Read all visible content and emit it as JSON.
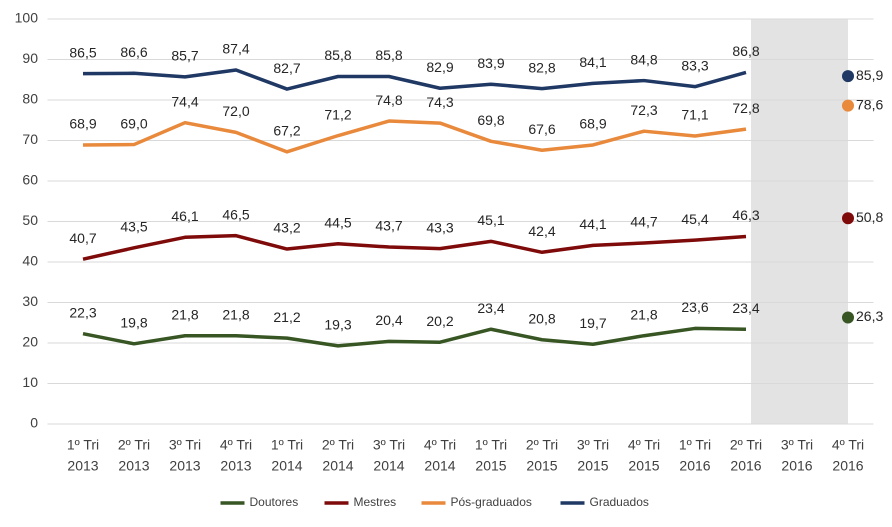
{
  "chart_data": {
    "type": "line",
    "categories": [
      [
        "1º Tri",
        "2013"
      ],
      [
        "2º Tri",
        "2013"
      ],
      [
        "3º Tri",
        "2013"
      ],
      [
        "4º Tri",
        "2013"
      ],
      [
        "1º Tri",
        "2014"
      ],
      [
        "2º Tri",
        "2014"
      ],
      [
        "3º Tri",
        "2014"
      ],
      [
        "4º Tri",
        "2014"
      ],
      [
        "1º Tri",
        "2015"
      ],
      [
        "2º Tri",
        "2015"
      ],
      [
        "3º Tri",
        "2015"
      ],
      [
        "4º Tri",
        "2015"
      ],
      [
        "1º Tri",
        "2016"
      ],
      [
        "2º Tri",
        "2016"
      ],
      [
        "3º Tri",
        "2016"
      ],
      [
        "4º Tri",
        "2016"
      ]
    ],
    "series": [
      {
        "name": "Doutores",
        "color": "#375623",
        "values": [
          22.3,
          19.8,
          21.8,
          21.8,
          21.2,
          19.3,
          20.4,
          20.2,
          23.4,
          20.8,
          19.7,
          21.8,
          23.6,
          23.4,
          null,
          26.3
        ],
        "value_labels": [
          "22,3",
          "19,8",
          "21,8",
          "21,8",
          "21,2",
          "19,3",
          "20,4",
          "20,2",
          "23,4",
          "20,8",
          "19,7",
          "21,8",
          "23,6",
          "23,4",
          null,
          "26,3"
        ]
      },
      {
        "name": "Mestres",
        "color": "#7f0a0a",
        "values": [
          40.7,
          43.5,
          46.1,
          46.5,
          43.2,
          44.5,
          43.7,
          43.3,
          45.1,
          42.4,
          44.1,
          44.7,
          45.4,
          46.3,
          null,
          50.8
        ],
        "value_labels": [
          "40,7",
          "43,5",
          "46,1",
          "46,5",
          "43,2",
          "44,5",
          "43,7",
          "43,3",
          "45,1",
          "42,4",
          "44,1",
          "44,7",
          "45,4",
          "46,3",
          null,
          "50,8"
        ]
      },
      {
        "name": "Pós-graduados",
        "color": "#e8893c",
        "values": [
          68.9,
          69.0,
          74.4,
          72.0,
          67.2,
          71.2,
          74.8,
          74.3,
          69.8,
          67.6,
          68.9,
          72.3,
          71.1,
          72.8,
          null,
          78.6
        ],
        "value_labels": [
          "68,9",
          "69,0",
          "74,4",
          "72,0",
          "67,2",
          "71,2",
          "74,8",
          "74,3",
          "69,8",
          "67,6",
          "68,9",
          "72,3",
          "71,1",
          "72,8",
          null,
          "78,6"
        ]
      },
      {
        "name": "Graduados",
        "color": "#1f3864",
        "values": [
          86.5,
          86.6,
          85.7,
          87.4,
          82.7,
          85.8,
          85.8,
          82.9,
          83.9,
          82.8,
          84.1,
          84.8,
          83.3,
          86.8,
          null,
          85.9
        ],
        "value_labels": [
          "86,5",
          "86,6",
          "85,7",
          "87,4",
          "82,7",
          "85,8",
          "85,8",
          "82,9",
          "83,9",
          "82,8",
          "84,1",
          "84,8",
          "83,3",
          "86,8",
          null,
          "85,9"
        ]
      }
    ],
    "ylim": [
      0,
      100
    ],
    "yticks": [
      0,
      10,
      20,
      30,
      40,
      50,
      60,
      70,
      80,
      90,
      100
    ],
    "grid": true
  }
}
